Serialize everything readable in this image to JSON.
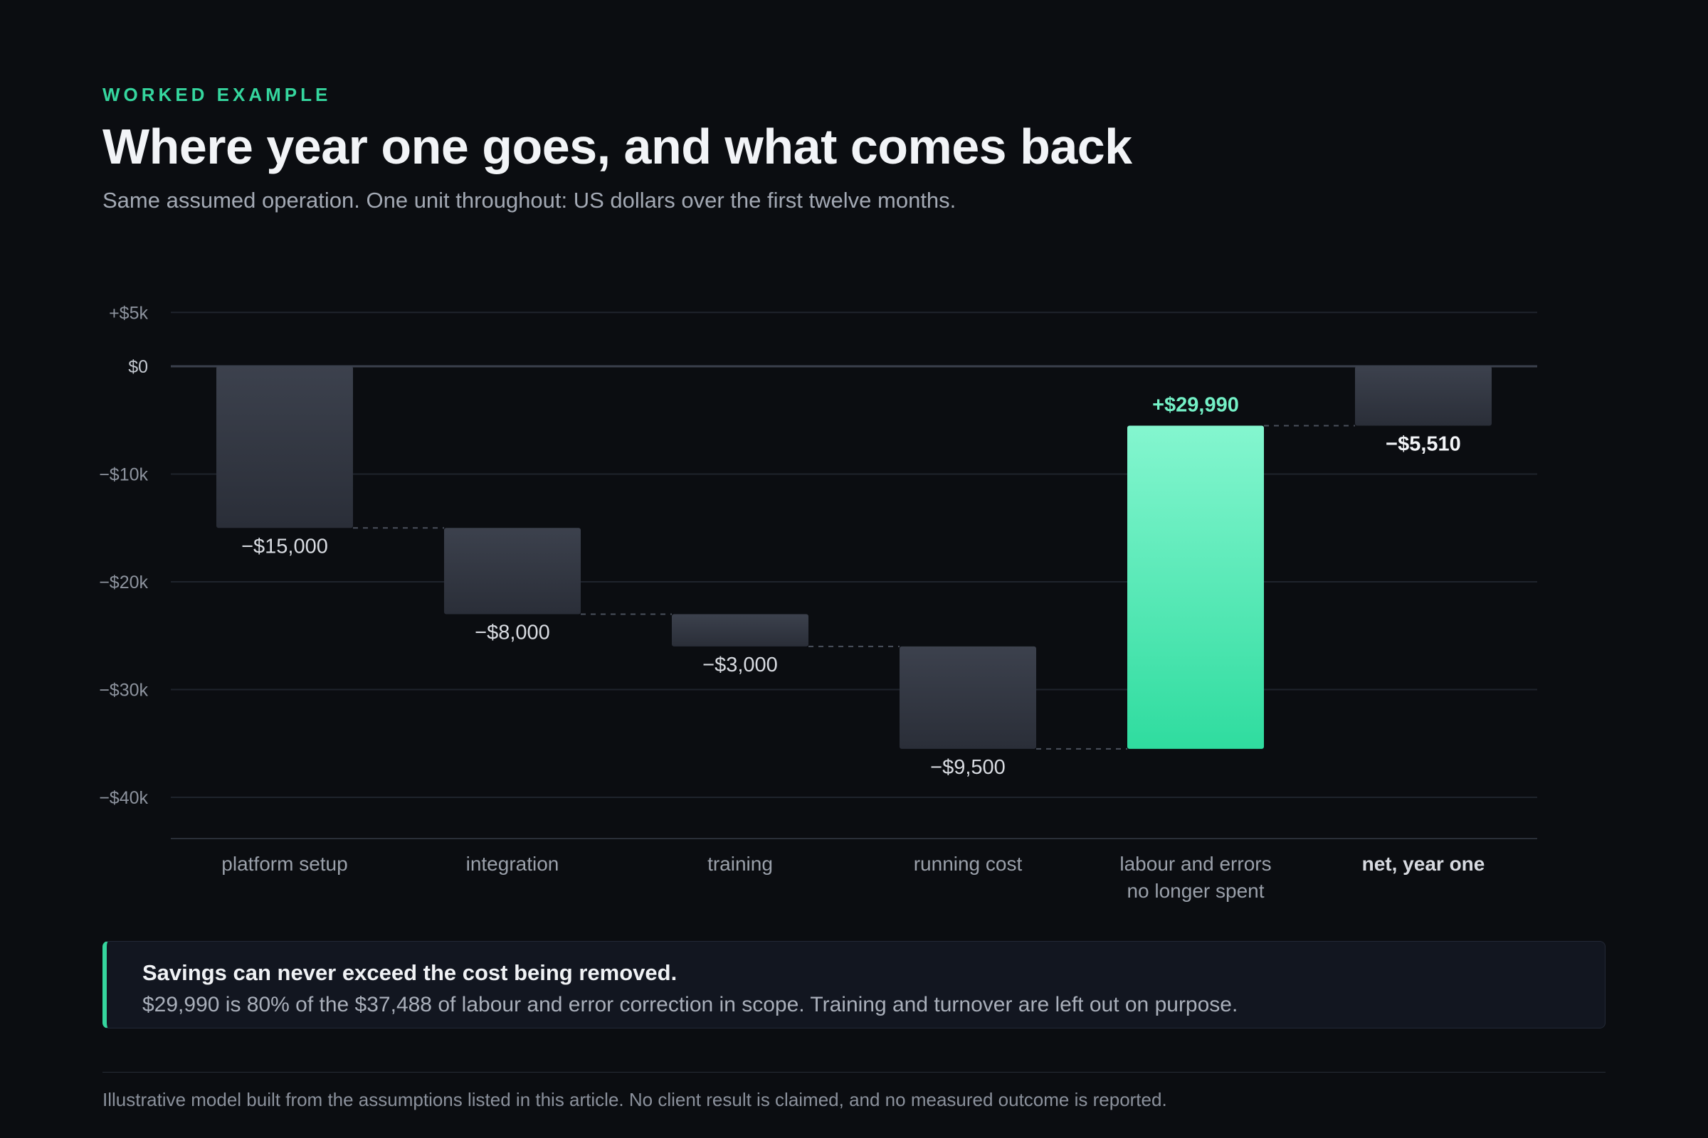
{
  "header": {
    "eyebrow": "WORKED EXAMPLE",
    "title": "Where year one goes, and what comes back",
    "subtitle": "Same assumed operation. One unit throughout: US dollars over the first twelve months."
  },
  "chart_data": {
    "type": "waterfall",
    "categories": [
      "platform setup",
      "integration",
      "training",
      "running cost",
      "labour and errors\nno longer spent",
      "net, year one"
    ],
    "values": [
      -15000,
      -8000,
      -3000,
      -9500,
      29990,
      -5510
    ],
    "value_labels": [
      "−$15,000",
      "−$8,000",
      "−$3,000",
      "−$9,500",
      "+$29,990",
      "−$5,510"
    ],
    "total_index": 5,
    "y_ticks": [
      5000,
      0,
      -10000,
      -20000,
      -30000,
      -40000
    ],
    "y_tick_labels": [
      "+$5k",
      "$0",
      "−$10k",
      "−$20k",
      "−$30k",
      "−$40k"
    ],
    "ylim": [
      -44000,
      5000
    ],
    "grid": true,
    "colors": {
      "cost_top": "#3c414d",
      "cost_bottom": "#2a2e38",
      "gain_top": "#84f6cf",
      "gain_bottom": "#2fdc9f",
      "gain_label": "#74f0c6",
      "label": "#d8dbe1",
      "total_label": "#f2f4f7",
      "tick": "#8d939e",
      "category": "#9aa0aa"
    }
  },
  "callout": {
    "heading": "Savings can never exceed the cost being removed.",
    "body": "$29,990 is 80% of the $37,488 of labour and error correction in scope. Training and turnover are left out on purpose."
  },
  "footnote": "Illustrative model built from the assumptions listed in this article. No client result is claimed, and no measured outcome is reported."
}
